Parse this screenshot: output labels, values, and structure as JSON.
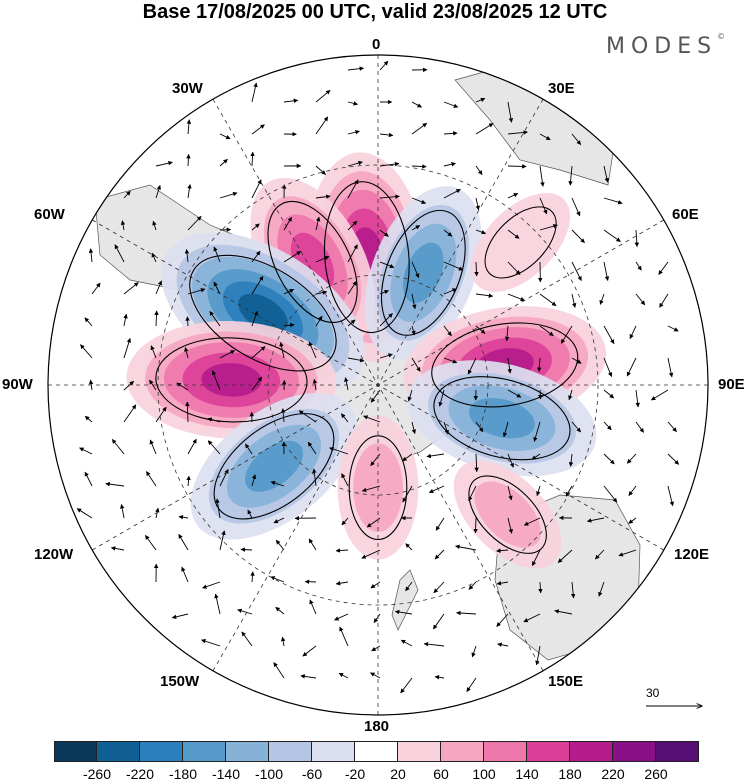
{
  "title": "Base 17/08/2025 00 UTC, valid 23/08/2025 12 UTC",
  "brand": "MODES",
  "brand_mark": "©",
  "longitude_labels": {
    "l0": "0",
    "l30e": "30E",
    "l60e": "60E",
    "l90e": "90E",
    "l120e": "120E",
    "l150e": "150E",
    "l180": "180",
    "l150w": "150W",
    "l120w": "120W",
    "l90w": "90W",
    "l60w": "60W",
    "l30w": "30W"
  },
  "wind_reference": {
    "value": "30",
    "arrow_icon": "arrow-right-icon"
  },
  "anomaly_centers": [
    {
      "lon": -5,
      "lat": -55,
      "value": 200,
      "color": "#9c1b8c"
    },
    {
      "lon": -28,
      "lat": -52,
      "value": 150,
      "color": "#d9489b"
    },
    {
      "lon": 22,
      "lat": -57,
      "value": -150,
      "color": "#3f8cc0"
    },
    {
      "lon": -58,
      "lat": -53,
      "value": -230,
      "color": "#1f4e79"
    },
    {
      "lon": -88,
      "lat": -50,
      "value": 200,
      "color": "#9c1b8c"
    },
    {
      "lon": -128,
      "lat": -54,
      "value": -170,
      "color": "#2f7eb8"
    },
    {
      "lon": 81,
      "lat": -55,
      "value": 190,
      "color": "#a51b8e"
    },
    {
      "lon": 105,
      "lat": -55,
      "value": -170,
      "color": "#2f7eb8"
    },
    {
      "lon": 180,
      "lat": -62,
      "value": 80,
      "color": "#f5a5c0"
    },
    {
      "lon": 135,
      "lat": -40,
      "value": 60,
      "color": "#f5b8cc"
    },
    {
      "lon": 45,
      "lat": -35,
      "value": 40,
      "color": "#f6c9d6"
    }
  ],
  "colorbar": {
    "colors": [
      "#08375a",
      "#0f5e94",
      "#2b7fbd",
      "#5599c9",
      "#86b2d8",
      "#b4c6e4",
      "#dcdff0",
      "#ffffff",
      "#f8d2dc",
      "#f5a6c1",
      "#ee77ac",
      "#dc3f98",
      "#b41c8b",
      "#871086",
      "#560d74"
    ],
    "labels": [
      "-260",
      "-220",
      "-180",
      "-140",
      "-100",
      "-60",
      "-20",
      "20",
      "60",
      "100",
      "140",
      "180",
      "220",
      "260"
    ]
  }
}
